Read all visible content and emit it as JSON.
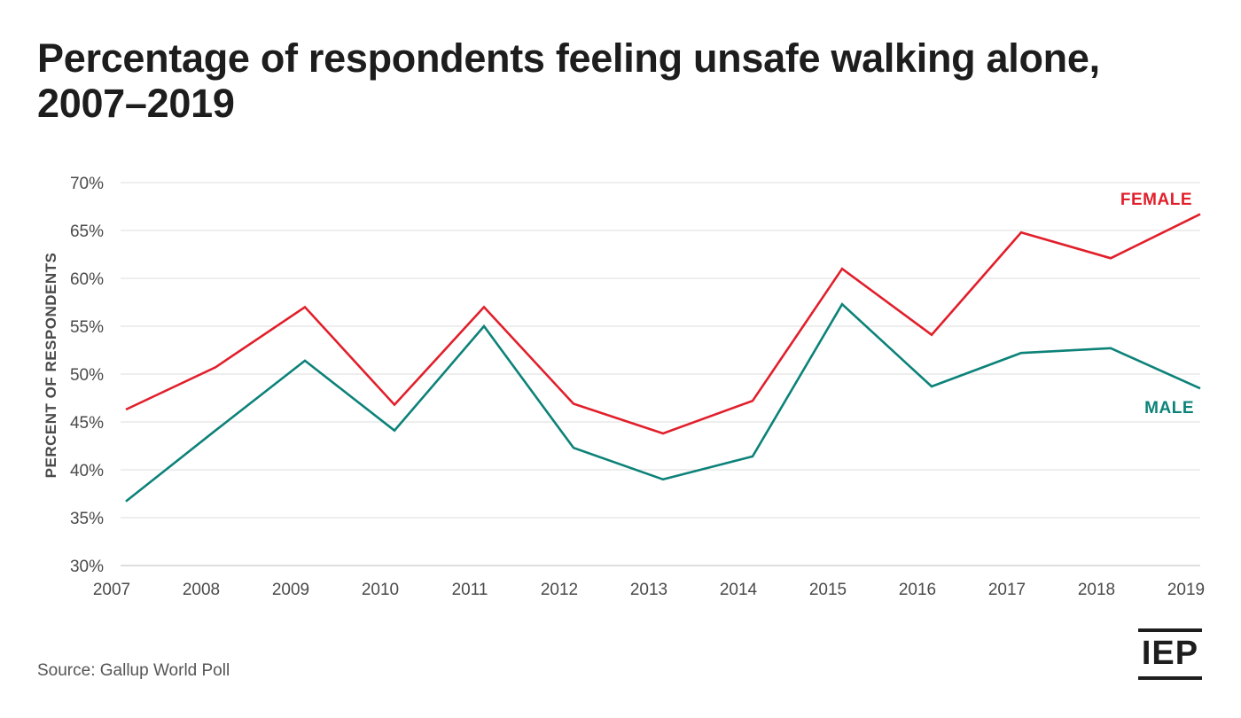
{
  "chart_data": {
    "type": "line",
    "title": "Percentage of respondents feeling unsafe walking alone, 2007–2019",
    "xlabel": "",
    "ylabel": "PERCENT OF RESPONDENTS",
    "x": [
      2007,
      2008,
      2009,
      2010,
      2011,
      2012,
      2013,
      2014,
      2015,
      2016,
      2017,
      2018,
      2019
    ],
    "x_tick_labels": [
      "2007",
      "2008",
      "2009",
      "2010",
      "2011",
      "2012",
      "2013",
      "2014",
      "2015",
      "2016",
      "2017",
      "2018",
      "2019"
    ],
    "y_tick_labels": [
      "30%",
      "35%",
      "40%",
      "45%",
      "50%",
      "55%",
      "60%",
      "65%",
      "70%"
    ],
    "y_ticks": [
      30,
      35,
      40,
      45,
      50,
      55,
      60,
      65,
      70
    ],
    "ylim": [
      30,
      70
    ],
    "xlim": [
      2007,
      2019
    ],
    "grid": true,
    "series": [
      {
        "name": "FEMALE",
        "color": "#e11f2b",
        "values": [
          46.3,
          50.7,
          57.0,
          46.8,
          57.0,
          46.9,
          43.8,
          47.2,
          61.0,
          54.1,
          64.8,
          62.1,
          66.7
        ]
      },
      {
        "name": "MALE",
        "color": "#0c8279",
        "values": [
          36.7,
          44.1,
          51.4,
          44.1,
          55.0,
          42.3,
          39.0,
          41.4,
          57.3,
          48.7,
          52.2,
          52.7,
          48.5
        ]
      }
    ]
  },
  "source": "Source: Gallup World Poll",
  "logo_text": "IEP"
}
